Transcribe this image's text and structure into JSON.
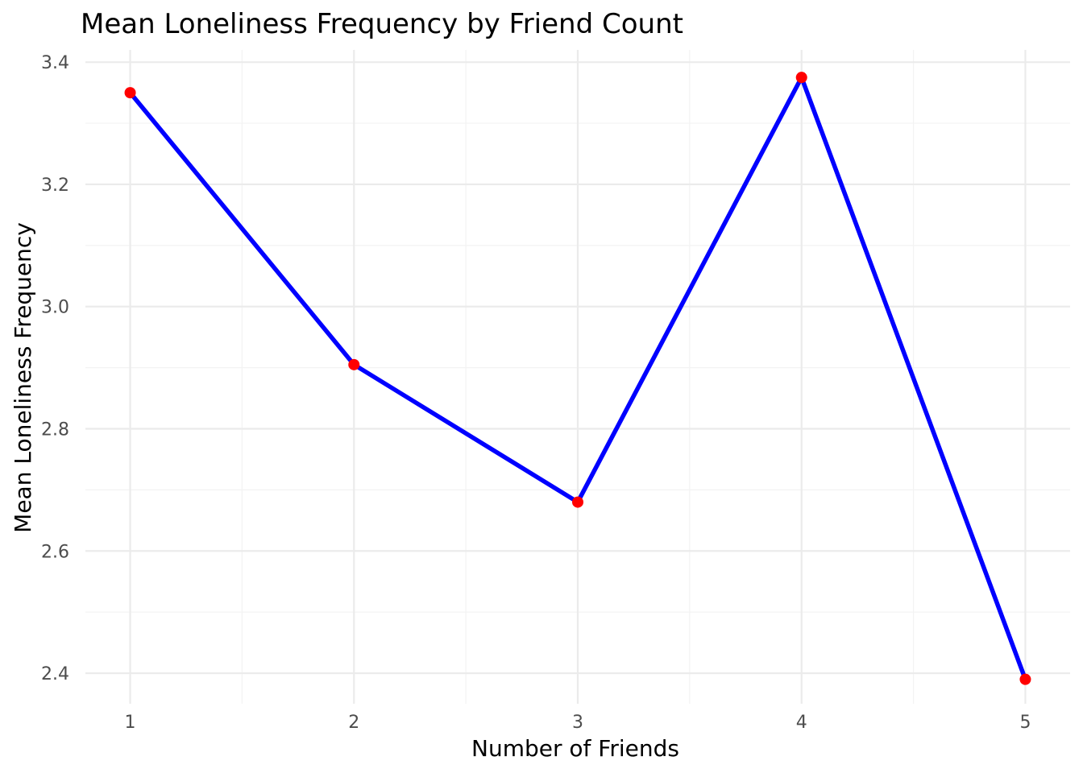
{
  "chart_data": {
    "type": "line",
    "title": "Mean Loneliness Frequency by Friend Count",
    "xlabel": "Number of Friends",
    "ylabel": "Mean Loneliness Frequency",
    "x": [
      1,
      2,
      3,
      4,
      5
    ],
    "series": [
      {
        "values": [
          3.35,
          2.905,
          2.68,
          3.375,
          2.39
        ]
      }
    ],
    "xlim": [
      0.8,
      5.2
    ],
    "ylim": [
      2.35,
      3.42
    ],
    "x_ticks": [
      1,
      2,
      3,
      4,
      5
    ],
    "x_tick_labels": [
      "1",
      "2",
      "3",
      "4",
      "5"
    ],
    "y_ticks": [
      2.4,
      2.6,
      2.8,
      3.0,
      3.2,
      3.4
    ],
    "y_tick_labels": [
      "2.4",
      "2.6",
      "2.8",
      "3.0",
      "3.2",
      "3.4"
    ],
    "grid": true,
    "legend": "none",
    "colors": {
      "line": "#0000ff",
      "points": "#ff0000",
      "grid": "#ebebeb",
      "tick_text": "#4d4d4d"
    }
  }
}
